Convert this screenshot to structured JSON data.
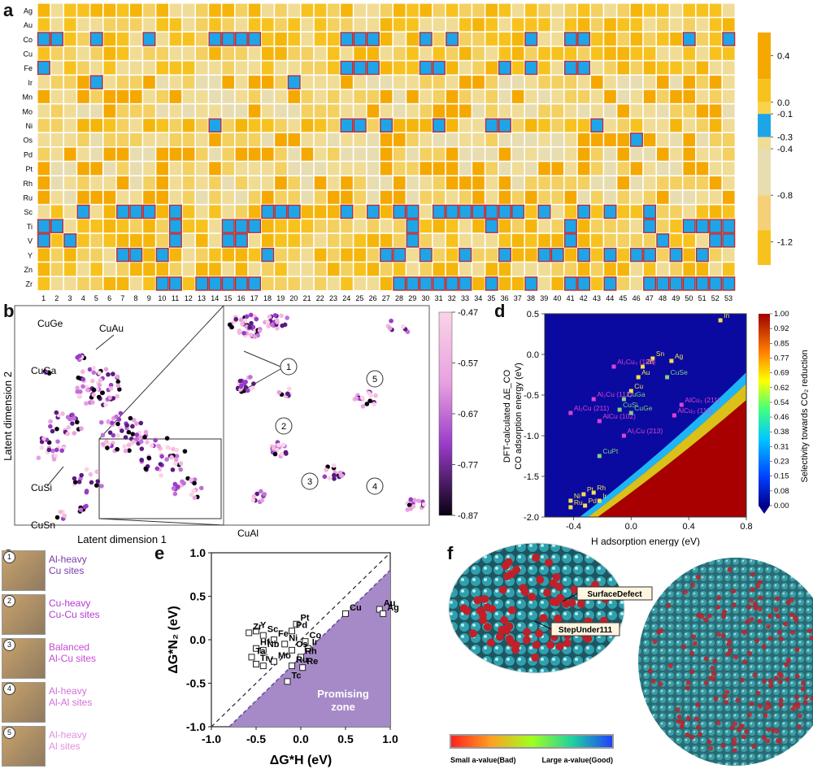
{
  "panel_labels": {
    "a": "a",
    "b": "b",
    "c": "c",
    "d": "d",
    "e": "e",
    "f": "f"
  },
  "chart_data": [
    {
      "type": "heatmap",
      "panel": "a",
      "rows": [
        "Ag",
        "Au",
        "Co",
        "Cu",
        "Fe",
        "Ir",
        "Mn",
        "Mo",
        "Ni",
        "Os",
        "Pd",
        "Pt",
        "Rh",
        "Ru",
        "Sc",
        "Ti",
        "V",
        "Y",
        "Zn",
        "Zr"
      ],
      "columns": [
        "1",
        "2",
        "3",
        "4",
        "5",
        "6",
        "7",
        "8",
        "9",
        "10",
        "11",
        "12",
        "13",
        "14",
        "15",
        "16",
        "17",
        "18",
        "19",
        "20",
        "21",
        "22",
        "23",
        "24",
        "25",
        "26",
        "27",
        "28",
        "29",
        "30",
        "31",
        "32",
        "33",
        "34",
        "35",
        "36",
        "37",
        "38",
        "39",
        "40",
        "41",
        "42",
        "43",
        "44",
        "45",
        "46",
        "47",
        "48",
        "49",
        "50",
        "51",
        "52",
        "53"
      ],
      "highlighted_cells_blue": {
        "Co": [
          1,
          2,
          5,
          9,
          14,
          15,
          16,
          17,
          24,
          25,
          26,
          30,
          32,
          38,
          41,
          42,
          50,
          53
        ],
        "Fe": [
          1,
          24,
          25,
          26,
          30,
          31,
          36,
          38,
          41,
          42
        ],
        "Ir": [
          5,
          20
        ],
        "Ni": [
          14,
          24,
          25,
          27,
          31,
          35,
          36,
          43
        ],
        "Os": [
          46
        ],
        "Sc": [
          4,
          7,
          8,
          9,
          11,
          18,
          19,
          20,
          24,
          26,
          28,
          29,
          31,
          32,
          33,
          34,
          35,
          36,
          37,
          39,
          42,
          44,
          47
        ],
        "Ti": [
          1,
          2,
          11,
          15,
          16,
          17,
          29,
          35,
          41,
          47,
          50,
          51,
          52,
          53
        ],
        "V": [
          1,
          3,
          11,
          15,
          16,
          29,
          41,
          48,
          52,
          53
        ],
        "Y": [
          7,
          8,
          10,
          18,
          27,
          28,
          30,
          33,
          36,
          39,
          40,
          42,
          44,
          46,
          47,
          49,
          51
        ],
        "Zr": [
          10,
          11,
          13,
          14,
          15,
          16,
          17,
          28,
          29,
          30,
          31,
          32,
          33,
          35,
          38,
          41,
          42,
          44,
          47,
          48,
          49,
          50,
          51,
          52,
          53
        ]
      },
      "colorbar": {
        "ticks": [
          "0.4",
          "0.0",
          "-0.1",
          "-0.3",
          "-0.4",
          "-0.8",
          "-1.2"
        ],
        "range": [
          -1.4,
          0.6
        ]
      }
    },
    {
      "type": "scatter",
      "panel": "b",
      "xlabel": "Latent dimension 1",
      "ylabel": "Latent dimension 2",
      "cluster_labels": [
        "CuGe",
        "CuAu",
        "CuGa",
        "CuSi",
        "CuSn",
        "CuAl"
      ],
      "numbered_clusters": [
        "1",
        "2",
        "3",
        "4",
        "5"
      ],
      "colorbar": {
        "ticks": [
          "-0.47",
          "-0.57",
          "-0.67",
          "-0.77",
          "-0.87"
        ],
        "range": [
          -0.87,
          -0.47
        ]
      }
    },
    {
      "type": "heatmap",
      "panel": "d",
      "xlabel": "H adsorption energy (eV)",
      "ylabel_line1": "DFT-calculated ΔE_CO",
      "ylabel_line2": "CO adsorption energy (eV)",
      "colorbar_label": "Selectivity towards CO₂ reduction",
      "xlim": [
        -0.6,
        0.8
      ],
      "ylim": [
        -2.0,
        0.5
      ],
      "xticks": [
        "-0.4",
        "0.0",
        "0.4",
        "0.8"
      ],
      "yticks": [
        "0.5",
        "0.0",
        "-0.5",
        "-1.0",
        "-1.5",
        "-2.0"
      ],
      "colorbar_ticks": [
        "1.00",
        "0.92",
        "0.85",
        "0.77",
        "0.69",
        "0.62",
        "0.54",
        "0.46",
        "0.38",
        "0.31",
        "0.23",
        "0.15",
        "0.08",
        "0.00"
      ],
      "points": [
        {
          "label": "In",
          "x": 0.62,
          "y": 0.42,
          "color": "#f5e04a"
        },
        {
          "label": "Sn",
          "x": 0.15,
          "y": -0.05,
          "color": "#f5e04a"
        },
        {
          "label": "Ag",
          "x": 0.28,
          "y": -0.08,
          "color": "#f5e04a"
        },
        {
          "label": "Zn",
          "x": 0.08,
          "y": -0.15,
          "color": "#f5e04a"
        },
        {
          "label": "Au",
          "x": 0.05,
          "y": -0.28,
          "color": "#f5e04a"
        },
        {
          "label": "CuSe",
          "x": 0.25,
          "y": -0.28,
          "color": "#7fd07f"
        },
        {
          "label": "Cu",
          "x": 0.0,
          "y": -0.45,
          "color": "#f5e04a"
        },
        {
          "label": "Al₂Cu₃ (100)",
          "x": -0.12,
          "y": -0.15,
          "color": "#e040d0"
        },
        {
          "label": "Al₂Cu (112)",
          "x": -0.26,
          "y": -0.55,
          "color": "#e040d0"
        },
        {
          "label": "CuGa",
          "x": -0.05,
          "y": -0.55,
          "color": "#7fd07f"
        },
        {
          "label": "CuSi",
          "x": -0.08,
          "y": -0.68,
          "color": "#7fd07f"
        },
        {
          "label": "Al₂Cu (211)",
          "x": -0.42,
          "y": -0.72,
          "color": "#e040d0"
        },
        {
          "label": "AlCu (102)",
          "x": -0.22,
          "y": -0.82,
          "color": "#e040d0"
        },
        {
          "label": "CuGe",
          "x": 0.0,
          "y": -0.72,
          "color": "#7fd07f"
        },
        {
          "label": "AlCu₃ (211)",
          "x": 0.35,
          "y": -0.62,
          "color": "#e040d0"
        },
        {
          "label": "AlCu₃ (111)",
          "x": 0.3,
          "y": -0.75,
          "color": "#e040d0"
        },
        {
          "label": "Al₂Cu (213)",
          "x": -0.05,
          "y": -1.0,
          "color": "#e040d0"
        },
        {
          "label": "CuPt",
          "x": -0.22,
          "y": -1.25,
          "color": "#7fd07f"
        },
        {
          "label": "Pt",
          "x": -0.33,
          "y": -1.72,
          "color": "#f5e04a"
        },
        {
          "label": "Rh",
          "x": -0.26,
          "y": -1.7,
          "color": "#f5e04a"
        },
        {
          "label": "Ni",
          "x": -0.42,
          "y": -1.8,
          "color": "#f5e04a"
        },
        {
          "label": "Ir",
          "x": -0.22,
          "y": -1.8,
          "color": "#f5e04a"
        },
        {
          "label": "Ru",
          "x": -0.42,
          "y": -1.88,
          "color": "#f5e04a"
        },
        {
          "label": "Pd",
          "x": -0.32,
          "y": -1.86,
          "color": "#f5e04a"
        }
      ]
    },
    {
      "type": "scatter",
      "panel": "e",
      "xlabel": "ΔG*H (eV)",
      "ylabel": "ΔG*N₂ (eV)",
      "xlim": [
        -1.0,
        1.0
      ],
      "ylim": [
        -1.0,
        1.0
      ],
      "xticks": [
        "-1.0",
        "-0.5",
        "0.0",
        "0.5",
        "1.0"
      ],
      "yticks": [
        "1.0",
        "0.5",
        "0.0",
        "-0.5",
        "-1.0"
      ],
      "zone_label_line1": "Promising",
      "zone_label_line2": "zone",
      "points": [
        {
          "label": "Au",
          "x": 0.88,
          "y": 0.35
        },
        {
          "label": "Ag",
          "x": 0.92,
          "y": 0.3
        },
        {
          "label": "Cu",
          "x": 0.5,
          "y": 0.3
        },
        {
          "label": "Pt",
          "x": -0.05,
          "y": 0.18
        },
        {
          "label": "Pd",
          "x": -0.1,
          "y": 0.1
        },
        {
          "label": "Co",
          "x": 0.05,
          "y": -0.02
        },
        {
          "label": "Ir",
          "x": 0.08,
          "y": -0.1
        },
        {
          "label": "Rh",
          "x": 0.0,
          "y": -0.2
        },
        {
          "label": "Re",
          "x": 0.02,
          "y": -0.32
        },
        {
          "label": "Ru",
          "x": -0.1,
          "y": -0.3
        },
        {
          "label": "Tc",
          "x": -0.15,
          "y": -0.48
        },
        {
          "label": "Os",
          "x": -0.1,
          "y": -0.12
        },
        {
          "label": "Ni",
          "x": -0.18,
          "y": -0.05
        },
        {
          "label": "Fe",
          "x": -0.3,
          "y": 0.0
        },
        {
          "label": "Sc",
          "x": -0.42,
          "y": 0.05
        },
        {
          "label": "Y",
          "x": -0.5,
          "y": 0.1
        },
        {
          "label": "Zr",
          "x": -0.58,
          "y": 0.08
        },
        {
          "label": "Hf",
          "x": -0.5,
          "y": -0.1
        },
        {
          "label": "Nb",
          "x": -0.42,
          "y": -0.12
        },
        {
          "label": "Ta",
          "x": -0.55,
          "y": -0.2
        },
        {
          "label": "Mo",
          "x": -0.3,
          "y": -0.25
        },
        {
          "label": "Ti",
          "x": -0.5,
          "y": -0.28
        },
        {
          "label": "V",
          "x": -0.42,
          "y": -0.3
        }
      ]
    }
  ],
  "panel_c": [
    {
      "num": "1",
      "line1": "Al-heavy",
      "line2": "Cu sites",
      "color": "#7b3aa8"
    },
    {
      "num": "2",
      "line1": "Cu-heavy",
      "line2": "Cu-Cu sites",
      "color": "#b43ad0"
    },
    {
      "num": "3",
      "line1": "Balanced",
      "line2": "Al-Cu sites",
      "color": "#c84ad8"
    },
    {
      "num": "4",
      "line1": "Al-heavy",
      "line2": "Al-Al sites",
      "color": "#d070d8"
    },
    {
      "num": "5",
      "line1": "Al-heavy",
      "line2": "Al sites",
      "color": "#e090e0"
    }
  ],
  "panel_f": {
    "label_surface": "SurfaceDefect",
    "label_step": "StepUnder111",
    "gradient_left": "Small a-value(Bad)",
    "gradient_right": "Large a-value(Good)"
  }
}
